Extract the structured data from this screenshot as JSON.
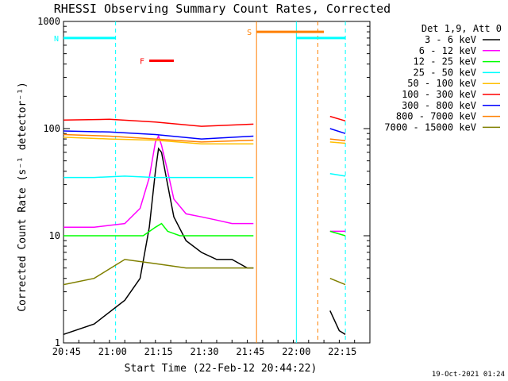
{
  "chart_data": {
    "type": "line",
    "title": "RHESSI Observing Summary Count Rates, Corrected",
    "xlabel": "Start Time (22-Feb-12 20:44:22)",
    "ylabel": "Corrected Count Rate (s⁻¹ detector⁻¹)",
    "yscale": "log",
    "ylim": [
      1,
      1000
    ],
    "x_range_minutes_after_2044": [
      0,
      100
    ],
    "x_ticks": [
      {
        "t": 1,
        "label": "20:45"
      },
      {
        "t": 16,
        "label": "21:00"
      },
      {
        "t": 31,
        "label": "21:15"
      },
      {
        "t": 46,
        "label": "21:30"
      },
      {
        "t": 61,
        "label": "21:45"
      },
      {
        "t": 76,
        "label": "22:00"
      },
      {
        "t": 91,
        "label": "22:15"
      }
    ],
    "y_ticks": [
      {
        "v": 1,
        "label": "1"
      },
      {
        "v": 10,
        "label": "10"
      },
      {
        "v": 100,
        "label": "100"
      },
      {
        "v": 1000,
        "label": "1000"
      }
    ],
    "legend_title": "Det 1,9, Att 0",
    "legend_position": "right",
    "series": [
      {
        "name": "3 - 6 keV",
        "color": "#000000",
        "points": [
          [
            0,
            1.2
          ],
          [
            10,
            1.5
          ],
          [
            20,
            2.5
          ],
          [
            25,
            4
          ],
          [
            28,
            12
          ],
          [
            30,
            40
          ],
          [
            31,
            65
          ],
          [
            32,
            60
          ],
          [
            34,
            30
          ],
          [
            36,
            15
          ],
          [
            40,
            9
          ],
          [
            45,
            7
          ],
          [
            50,
            6
          ],
          [
            55,
            6
          ],
          [
            60,
            5
          ],
          [
            62,
            5
          ],
          [
            null,
            null
          ],
          [
            87,
            2
          ],
          [
            90,
            1.3
          ],
          [
            92,
            1.2
          ]
        ]
      },
      {
        "name": "6 - 12 keV",
        "color": "#ff00ff",
        "points": [
          [
            0,
            12
          ],
          [
            10,
            12
          ],
          [
            20,
            13
          ],
          [
            25,
            18
          ],
          [
            28,
            35
          ],
          [
            30,
            75
          ],
          [
            31,
            85
          ],
          [
            32,
            70
          ],
          [
            34,
            40
          ],
          [
            36,
            22
          ],
          [
            40,
            16
          ],
          [
            45,
            15
          ],
          [
            50,
            14
          ],
          [
            55,
            13
          ],
          [
            60,
            13
          ],
          [
            62,
            13
          ],
          [
            null,
            null
          ],
          [
            87,
            11
          ],
          [
            92,
            11
          ]
        ]
      },
      {
        "name": "12 - 25 keV",
        "color": "#00ff00",
        "points": [
          [
            0,
            10
          ],
          [
            10,
            10
          ],
          [
            20,
            10
          ],
          [
            26,
            10
          ],
          [
            30,
            12
          ],
          [
            32,
            13
          ],
          [
            34,
            11
          ],
          [
            38,
            10
          ],
          [
            45,
            10
          ],
          [
            55,
            10
          ],
          [
            62,
            10
          ],
          [
            null,
            null
          ],
          [
            87,
            11
          ],
          [
            92,
            10
          ]
        ]
      },
      {
        "name": "25 - 50 keV",
        "color": "#00ffff",
        "points": [
          [
            0,
            35
          ],
          [
            10,
            35
          ],
          [
            20,
            36
          ],
          [
            30,
            35
          ],
          [
            40,
            35
          ],
          [
            50,
            35
          ],
          [
            62,
            35
          ],
          [
            null,
            null
          ],
          [
            87,
            38
          ],
          [
            92,
            36
          ]
        ]
      },
      {
        "name": "50 - 100 keV",
        "color": "#ffbf00",
        "points": [
          [
            0,
            83
          ],
          [
            15,
            80
          ],
          [
            30,
            78
          ],
          [
            45,
            72
          ],
          [
            62,
            72
          ],
          [
            null,
            null
          ],
          [
            87,
            75
          ],
          [
            92,
            73
          ]
        ]
      },
      {
        "name": "100 - 300 keV",
        "color": "#ff0000",
        "points": [
          [
            0,
            120
          ],
          [
            15,
            122
          ],
          [
            30,
            115
          ],
          [
            45,
            105
          ],
          [
            62,
            110
          ],
          [
            null,
            null
          ],
          [
            87,
            130
          ],
          [
            92,
            118
          ]
        ]
      },
      {
        "name": "300 - 800 keV",
        "color": "#0000ff",
        "points": [
          [
            0,
            95
          ],
          [
            15,
            93
          ],
          [
            30,
            88
          ],
          [
            45,
            80
          ],
          [
            62,
            85
          ],
          [
            null,
            null
          ],
          [
            87,
            100
          ],
          [
            92,
            90
          ]
        ]
      },
      {
        "name": "800 - 7000 keV",
        "color": "#ff8000",
        "points": [
          [
            0,
            88
          ],
          [
            15,
            85
          ],
          [
            30,
            80
          ],
          [
            45,
            75
          ],
          [
            62,
            78
          ],
          [
            null,
            null
          ],
          [
            87,
            80
          ],
          [
            92,
            77
          ]
        ]
      },
      {
        "name": "7000 - 15000 keV",
        "color": "#808000",
        "points": [
          [
            0,
            3.5
          ],
          [
            10,
            4
          ],
          [
            20,
            6
          ],
          [
            30,
            5.5
          ],
          [
            40,
            5
          ],
          [
            50,
            5
          ],
          [
            62,
            5
          ],
          [
            null,
            null
          ],
          [
            87,
            4
          ],
          [
            92,
            3.5
          ]
        ]
      }
    ],
    "flag_bars": [
      {
        "label": "N",
        "color": "#00ffff",
        "t_start": 0,
        "t_end": 17,
        "level": 700
      },
      {
        "label": "F",
        "color": "#ff0000",
        "t_start": 28,
        "t_end": 36,
        "level": 430
      },
      {
        "label": "S",
        "color": "#ff8000",
        "t_start": 63,
        "t_end": 85,
        "level": 800
      },
      {
        "label": "",
        "color": "#00ffff",
        "t_start": 76,
        "t_end": 92,
        "level": 700
      }
    ],
    "vertical_markers": [
      {
        "t": 17,
        "color": "#00ffff",
        "style": "dashed"
      },
      {
        "t": 63,
        "color": "#ff8000",
        "style": "solid"
      },
      {
        "t": 76,
        "color": "#00ffff",
        "style": "solid"
      },
      {
        "t": 83,
        "color": "#ff8000",
        "style": "dashed"
      },
      {
        "t": 92,
        "color": "#00ffff",
        "style": "dashed"
      }
    ],
    "timestamp": "19-Oct-2021 01:24"
  }
}
